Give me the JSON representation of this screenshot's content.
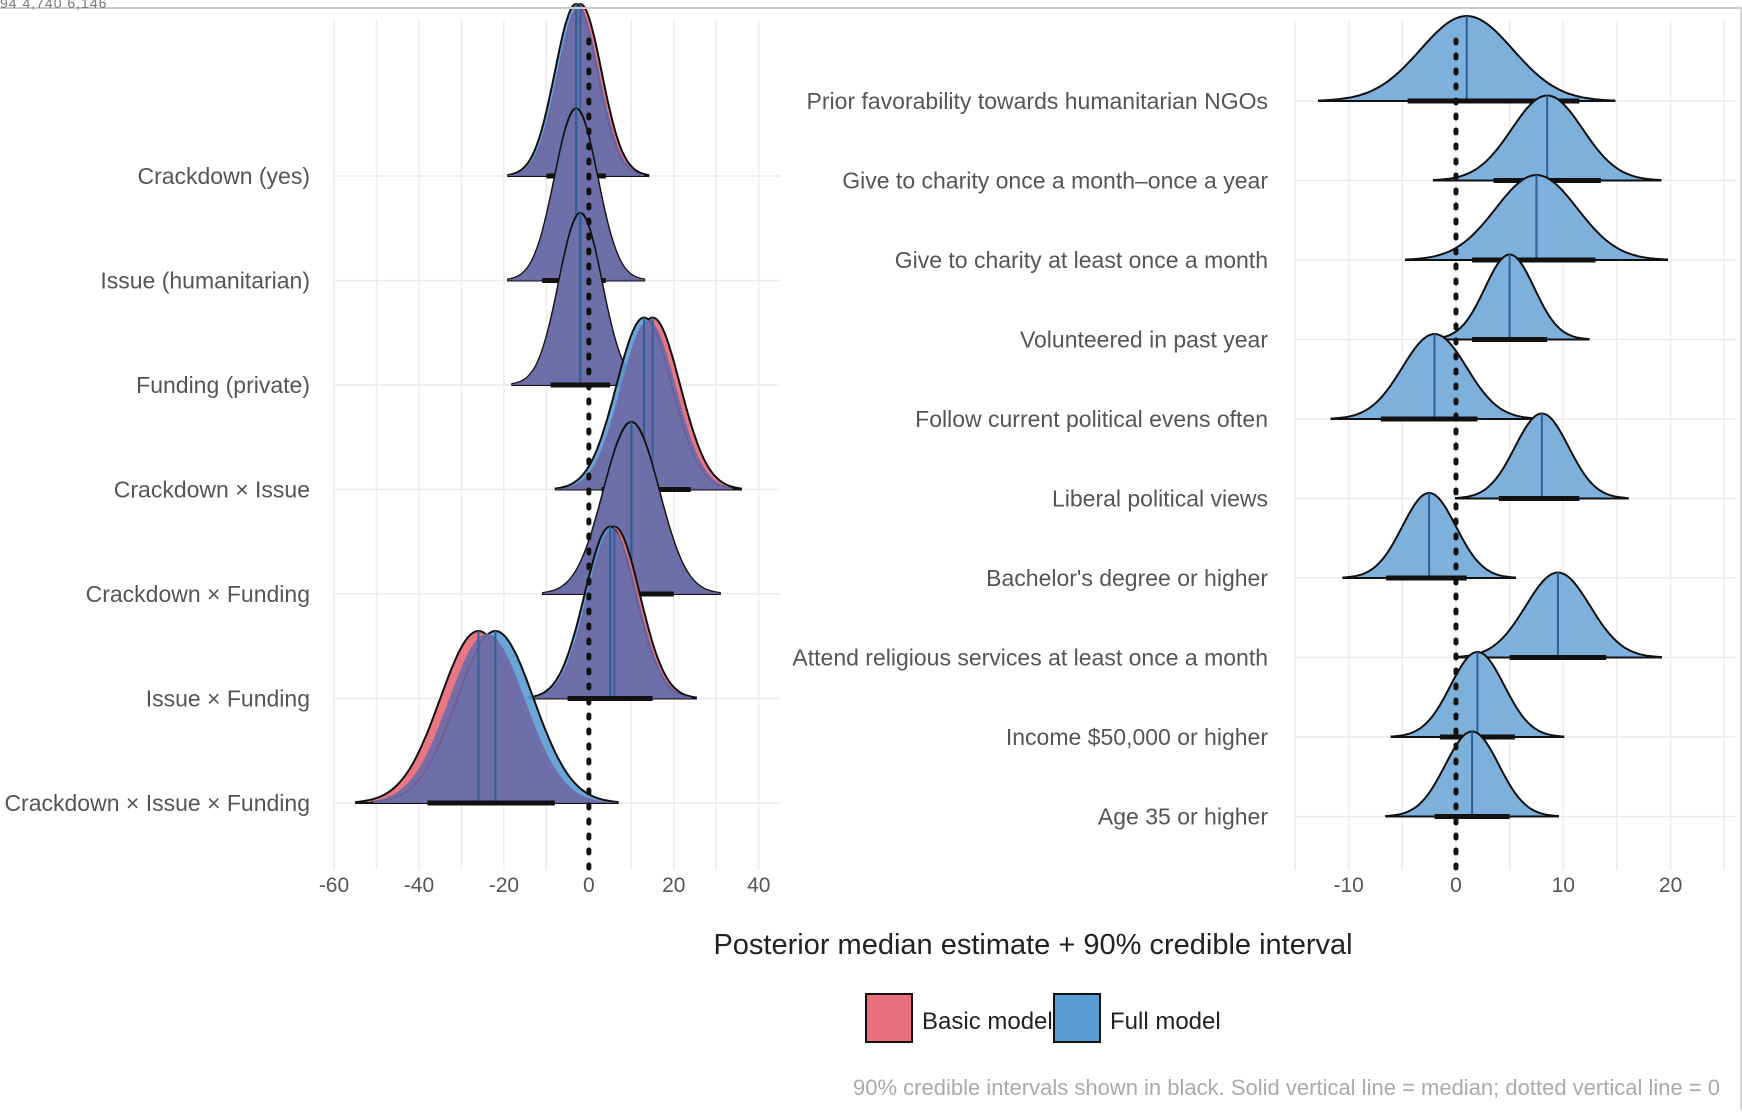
{
  "cropped_header_text": "94    4,740    6,146",
  "x_axis_title": "Posterior median estimate + 90% credible interval",
  "caption": "90% credible intervals shown in black. Solid vertical line = median; dotted vertical line = 0",
  "legend": [
    {
      "label": "Basic model",
      "color": "#e8707c"
    },
    {
      "label": "Full model",
      "color": "#5b9bd3"
    }
  ],
  "colors": {
    "basic": "#e8707c",
    "full": "#5b9bd3",
    "overlap": "#6f6aa6",
    "grid": "#ececec"
  },
  "chart_data": [
    {
      "type": "density-ridge",
      "panel": "left",
      "xlim": [
        -60,
        45
      ],
      "ticks": [
        -60,
        -40,
        -20,
        0,
        20,
        40
      ],
      "grid": true,
      "reference_line_x": 0,
      "terms": [
        {
          "label": "Crackdown (yes)",
          "basic": {
            "median": -2,
            "ci": [
              -9,
              5
            ],
            "sd": 5
          },
          "full": {
            "median": -3,
            "ci": [
              -10,
              4
            ],
            "sd": 5
          }
        },
        {
          "label": "Issue (humanitarian)",
          "basic": {
            "median": -3,
            "ci": [
              -10,
              4
            ],
            "sd": 5
          },
          "full": {
            "median": -3,
            "ci": [
              -11,
              4
            ],
            "sd": 5
          }
        },
        {
          "label": "Funding (private)",
          "basic": {
            "median": -2,
            "ci": [
              -10,
              5
            ],
            "sd": 5
          },
          "full": {
            "median": -2,
            "ci": [
              -9,
              5
            ],
            "sd": 5
          }
        },
        {
          "label": "Crackdown × Issue",
          "basic": {
            "median": 15,
            "ci": [
              4,
              26
            ],
            "sd": 6.5
          },
          "full": {
            "median": 13,
            "ci": [
              3,
              24
            ],
            "sd": 6.5
          }
        },
        {
          "label": "Crackdown × Funding",
          "basic": {
            "median": 10,
            "ci": [
              0,
              21
            ],
            "sd": 6.5
          },
          "full": {
            "median": 10,
            "ci": [
              0,
              20
            ],
            "sd": 6.5
          }
        },
        {
          "label": "Issue × Funding",
          "basic": {
            "median": 6,
            "ci": [
              -4,
              16
            ],
            "sd": 6
          },
          "full": {
            "median": 5,
            "ci": [
              -5,
              15
            ],
            "sd": 6
          }
        },
        {
          "label": "Crackdown × Issue × Funding",
          "basic": {
            "median": -26,
            "ci": [
              -40,
              -10
            ],
            "sd": 9
          },
          "full": {
            "median": -22,
            "ci": [
              -38,
              -8
            ],
            "sd": 9
          }
        }
      ]
    },
    {
      "type": "density-ridge",
      "panel": "right",
      "xlim": [
        -15,
        26
      ],
      "ticks": [
        -10,
        0,
        10,
        20
      ],
      "grid": true,
      "reference_line_x": 0,
      "terms": [
        {
          "label": "Prior favorability towards humanitarian NGOs",
          "full": {
            "median": 1,
            "ci": [
              -4.5,
              11.5
            ],
            "sd": 4.3
          }
        },
        {
          "label": "Give to charity once a month–once a year",
          "full": {
            "median": 8.5,
            "ci": [
              3.5,
              13.5
            ],
            "sd": 3.3
          }
        },
        {
          "label": "Give to charity at least once a month",
          "full": {
            "median": 7.5,
            "ci": [
              1.5,
              13
            ],
            "sd": 3.8
          }
        },
        {
          "label": "Volunteered in past year",
          "full": {
            "median": 5,
            "ci": [
              1.5,
              8.5
            ],
            "sd": 2.3
          }
        },
        {
          "label": "Follow current political evens often",
          "full": {
            "median": -2,
            "ci": [
              -7,
              2
            ],
            "sd": 3
          }
        },
        {
          "label": "Liberal political views",
          "full": {
            "median": 8,
            "ci": [
              4,
              11.5
            ],
            "sd": 2.5
          }
        },
        {
          "label": "Bachelor's degree or higher",
          "full": {
            "median": -2.5,
            "ci": [
              -6.5,
              1
            ],
            "sd": 2.5
          }
        },
        {
          "label": "Attend religious services at least once a month",
          "full": {
            "median": 9.5,
            "ci": [
              5,
              14
            ],
            "sd": 3
          }
        },
        {
          "label": "Income $50,000 or higher",
          "full": {
            "median": 2,
            "ci": [
              -1.5,
              5.5
            ],
            "sd": 2.5
          }
        },
        {
          "label": "Age 35 or higher",
          "full": {
            "median": 1.5,
            "ci": [
              -2,
              5
            ],
            "sd": 2.5
          }
        }
      ]
    }
  ]
}
